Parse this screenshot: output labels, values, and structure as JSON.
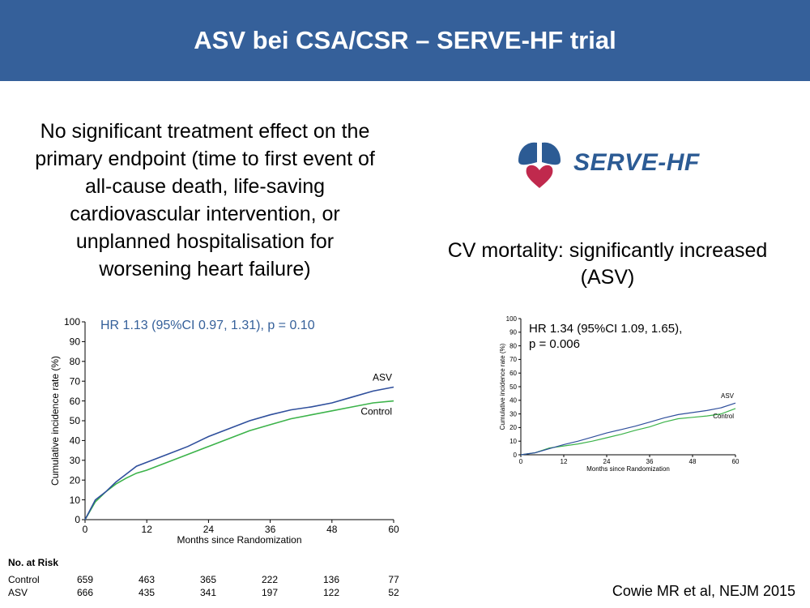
{
  "header": {
    "title": "ASV bei CSA/CSR – SERVE-HF trial"
  },
  "left_text": {
    "lines": [
      "No significant treatment effect on the",
      "primary endpoint (time to first event of",
      "all-cause death, life-saving",
      "cardiovascular intervention, or",
      "unplanned hospitalisation for",
      "worsening heart failure)"
    ]
  },
  "right_text": {
    "lines": [
      "CV mortality: significantly increased",
      "(ASV)"
    ]
  },
  "logo": {
    "text": "SERVE-HF",
    "icon": "lungs-heart-logo-icon",
    "colors": {
      "lungs": "#2c5b94",
      "heart": "#c0294d"
    }
  },
  "citation": "Cowie MR et al, NEJM 2015",
  "colors": {
    "header_bg": "#35609a",
    "asv": "#2f4f9c",
    "control": "#3cb34a"
  },
  "chart_data": [
    {
      "type": "line",
      "annotation": "HR 1.13 (95%CI 0.97, 1.31), p = 0.10",
      "ylabel": "Cumulative incidence rate (%)",
      "xlabel": "Months since Randomization",
      "xlim": [
        0,
        60
      ],
      "ylim": [
        0,
        100
      ],
      "xticks": [
        "0",
        "12",
        "24",
        "36",
        "48",
        "60"
      ],
      "yticks": [
        "0",
        "10",
        "20",
        "30",
        "40",
        "50",
        "60",
        "70",
        "80",
        "90",
        "100"
      ],
      "series": [
        {
          "name": "ASV",
          "x": [
            0,
            2,
            4,
            6,
            8,
            10,
            12,
            16,
            20,
            24,
            28,
            32,
            36,
            40,
            44,
            48,
            52,
            56,
            60
          ],
          "values": [
            0,
            10,
            14,
            19,
            23,
            27,
            29,
            33,
            37,
            42,
            46,
            50,
            53,
            55.5,
            57,
            59,
            62,
            65,
            67
          ]
        },
        {
          "name": "Control",
          "x": [
            0,
            2,
            4,
            6,
            8,
            10,
            12,
            16,
            20,
            24,
            28,
            32,
            36,
            40,
            44,
            48,
            52,
            56,
            60
          ],
          "values": [
            0,
            9,
            14,
            18,
            21,
            23.5,
            25,
            29,
            33,
            37,
            41,
            45,
            48,
            51,
            53,
            55,
            57,
            59,
            60
          ]
        }
      ],
      "risk_table": {
        "title": "No. at Risk",
        "rows": [
          {
            "label": "Control",
            "values": [
              "659",
              "463",
              "365",
              "222",
              "136",
              "77"
            ]
          },
          {
            "label": "ASV",
            "values": [
              "666",
              "435",
              "341",
              "197",
              "122",
              "52"
            ]
          }
        ]
      }
    },
    {
      "type": "line",
      "annotation_lines": [
        "HR 1.34 (95%CI 1.09, 1.65),",
        "p = 0.006"
      ],
      "ylabel": "Cumulative incidence rate (%)",
      "xlabel": "Months since Randomization",
      "xlim": [
        0,
        60
      ],
      "ylim": [
        0,
        100
      ],
      "xticks": [
        "0",
        "12",
        "24",
        "36",
        "48",
        "60"
      ],
      "yticks": [
        "0",
        "10",
        "20",
        "30",
        "40",
        "50",
        "60",
        "70",
        "80",
        "90",
        "100"
      ],
      "series": [
        {
          "name": "ASV",
          "x": [
            0,
            4,
            8,
            12,
            16,
            20,
            24,
            28,
            32,
            36,
            40,
            44,
            48,
            52,
            56,
            60
          ],
          "values": [
            0,
            1.5,
            4.5,
            7.5,
            10,
            13,
            16,
            18.5,
            21,
            24,
            27,
            29.5,
            31,
            32.5,
            34.5,
            38
          ]
        },
        {
          "name": "Control",
          "x": [
            0,
            4,
            8,
            12,
            16,
            20,
            24,
            28,
            32,
            36,
            40,
            44,
            48,
            52,
            56,
            60
          ],
          "values": [
            0,
            1.5,
            5,
            6.5,
            8,
            10,
            12.5,
            15,
            18,
            20.5,
            24,
            26.5,
            27.5,
            28.5,
            30,
            34
          ]
        }
      ]
    }
  ]
}
